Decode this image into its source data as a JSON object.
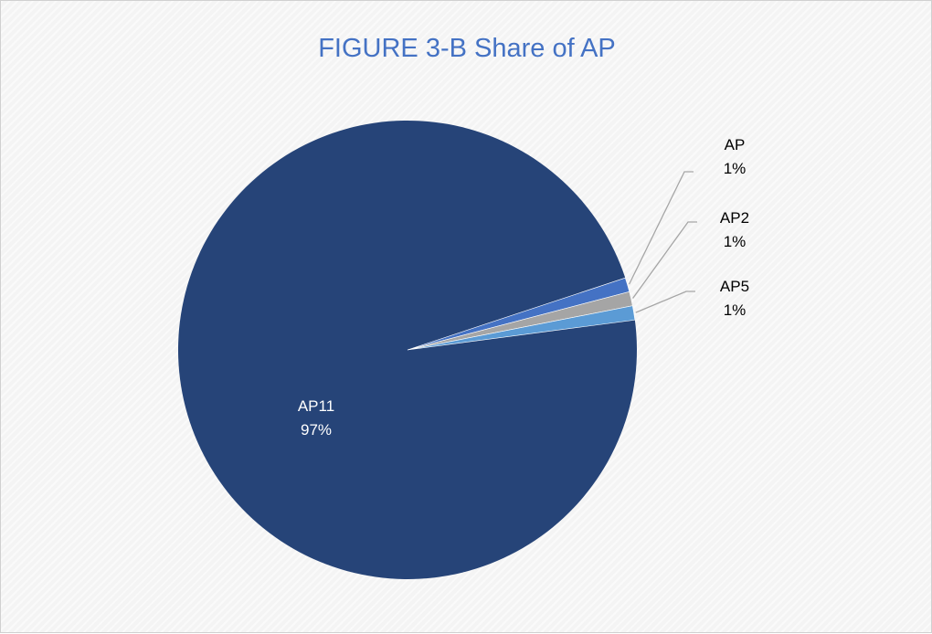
{
  "chart_data": {
    "type": "pie",
    "title": "FIGURE 3-B Share of AP",
    "slices": [
      {
        "name": "AP11",
        "value": 97,
        "label": "97%",
        "color": "#264478"
      },
      {
        "name": "AP",
        "value": 1,
        "label": "1%",
        "color": "#4472c4"
      },
      {
        "name": "AP2",
        "value": 1,
        "label": "1%",
        "color": "#a5a5a5"
      },
      {
        "name": "AP5",
        "value": 1,
        "label": "1%",
        "color": "#5b9bd5"
      }
    ],
    "label_color_inside": "#ffffff",
    "label_color_outside": "#000000",
    "leader_line_color": "#a6a6a6"
  }
}
